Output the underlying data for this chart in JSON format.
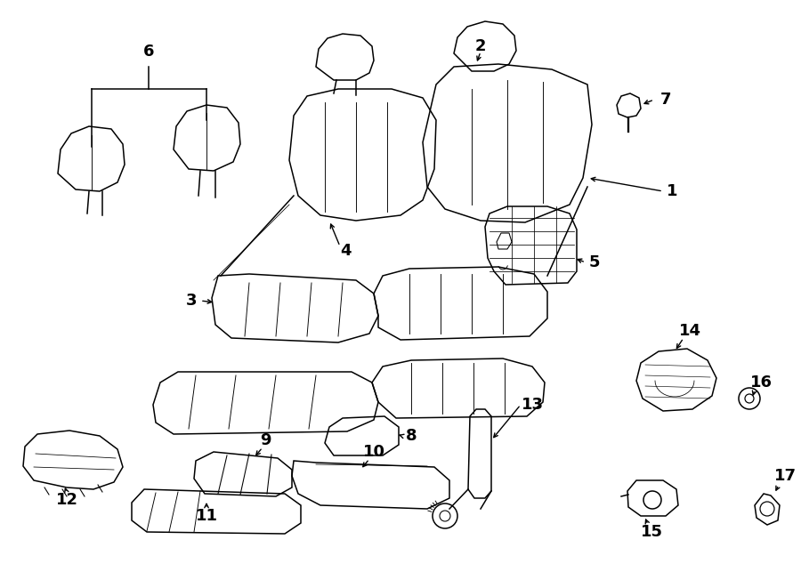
{
  "bg_color": "#ffffff",
  "line_color": "#000000",
  "lw": 1.1,
  "fig_w": 9.0,
  "fig_h": 6.61,
  "dpi": 100
}
